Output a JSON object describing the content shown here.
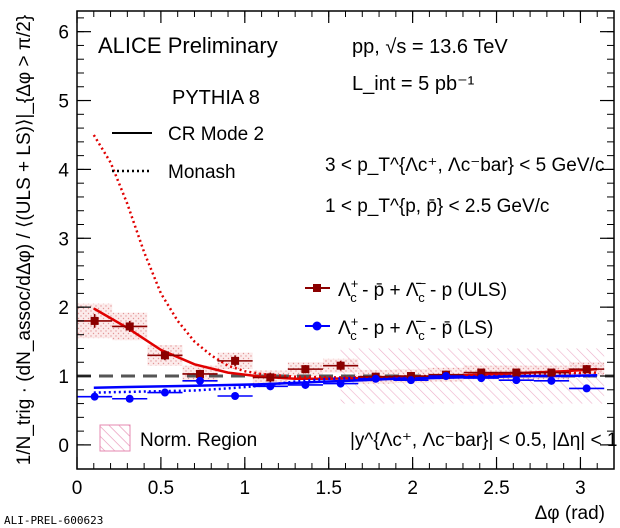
{
  "chart_data": {
    "type": "scatter",
    "title": "ALICE Preliminary",
    "collision": "pp,  √s = 13.6 TeV",
    "luminosity": "L_int = 5 pb⁻¹",
    "generator": "PYTHIA 8",
    "kinematics": [
      "3 < p_T^{Λc⁺, Λc⁻bar} < 5 GeV/c",
      "1 < p_T^{p, p̄} < 2.5 GeV/c"
    ],
    "acceptance": "|y^{Λc⁺, Λc⁻bar}| < 0.5, |Δη| < 1",
    "xlabel": "Δφ (rad)",
    "ylabel": "1/N_trig · (dN_assoc/dΔφ) / ⟨(ULS + LS)⟩|_{Δφ > π/2}",
    "xlim": [
      0,
      3.2
    ],
    "ylim": [
      -0.35,
      6.3
    ],
    "xticks": [
      0,
      0.5,
      1,
      1.5,
      2,
      2.5,
      3
    ],
    "yticks": [
      0,
      1,
      2,
      3,
      4,
      5,
      6
    ],
    "reference_line": 1.0,
    "watermark": "ALI-PREL-600623",
    "norm_region": {
      "label": "Norm. Region",
      "x_range": [
        1.5708,
        3.1416
      ],
      "y_range": [
        0.6,
        1.4
      ]
    },
    "series": [
      {
        "name": "ULS",
        "color": "#8b0000",
        "x": [
          0.105,
          0.314,
          0.524,
          0.733,
          0.942,
          1.152,
          1.361,
          1.571,
          1.78,
          1.99,
          2.199,
          2.409,
          2.618,
          2.827,
          3.037
        ],
        "y": [
          1.8,
          1.72,
          1.3,
          1.03,
          1.22,
          0.98,
          1.1,
          1.15,
          0.99,
          1.0,
          1.02,
          1.05,
          1.05,
          1.05,
          1.1
        ],
        "err": [
          0.1,
          0.08,
          0.07,
          0.06,
          0.08,
          0.07,
          0.06,
          0.07,
          0.06,
          0.05,
          0.05,
          0.05,
          0.05,
          0.05,
          0.06
        ],
        "syst": [
          0.25,
          0.2,
          0.15,
          0.12,
          0.12,
          0.1,
          0.1,
          0.1,
          0.1,
          0.1,
          0.1,
          0.1,
          0.1,
          0.1,
          0.1
        ]
      },
      {
        "name": "LS",
        "color": "#0000ff",
        "x": [
          0.105,
          0.314,
          0.524,
          0.733,
          0.942,
          1.152,
          1.361,
          1.571,
          1.78,
          1.99,
          2.199,
          2.409,
          2.618,
          2.827,
          3.037
        ],
        "y": [
          0.7,
          0.67,
          0.76,
          0.93,
          0.71,
          0.85,
          0.87,
          0.89,
          0.96,
          0.94,
          1.0,
          0.97,
          0.94,
          0.93,
          0.82
        ],
        "err": [
          0.05,
          0.05,
          0.05,
          0.05,
          0.05,
          0.05,
          0.05,
          0.04,
          0.04,
          0.04,
          0.04,
          0.04,
          0.04,
          0.04,
          0.05
        ]
      }
    ],
    "models": [
      {
        "name": "CR Mode 2",
        "style": "solid"
      },
      {
        "name": "Monash",
        "style": "dotted"
      }
    ],
    "curves": [
      {
        "series": "ULS",
        "model": "CR Mode 2",
        "color": "#e00000",
        "style": "solid",
        "x": [
          0.1,
          0.3,
          0.5,
          0.7,
          0.9,
          1.1,
          1.3,
          1.5,
          1.7,
          1.9,
          2.1,
          2.3,
          2.5,
          2.7,
          2.9,
          3.1
        ],
        "y": [
          1.98,
          1.7,
          1.38,
          1.17,
          1.05,
          0.99,
          0.96,
          0.96,
          0.97,
          0.98,
          0.99,
          1.01,
          1.03,
          1.05,
          1.07,
          1.1
        ]
      },
      {
        "series": "ULS",
        "model": "Monash",
        "color": "#e00000",
        "style": "dotted",
        "x": [
          0.1,
          0.2,
          0.3,
          0.4,
          0.5,
          0.6,
          0.7,
          0.8,
          0.9,
          1.0,
          1.1,
          1.3,
          1.5,
          1.7,
          1.9,
          2.1,
          2.3,
          2.5,
          2.7,
          2.9,
          3.1
        ],
        "y": [
          4.5,
          4.1,
          3.5,
          2.8,
          2.2,
          1.8,
          1.5,
          1.3,
          1.15,
          1.07,
          1.03,
          0.99,
          0.98,
          0.98,
          0.99,
          1.0,
          1.01,
          1.02,
          1.03,
          1.04,
          1.05
        ]
      },
      {
        "series": "LS",
        "model": "CR Mode 2",
        "color": "#0000ff",
        "style": "solid",
        "x": [
          0.1,
          0.3,
          0.5,
          0.7,
          0.9,
          1.1,
          1.3,
          1.5,
          1.7,
          1.9,
          2.1,
          2.3,
          2.5,
          2.7,
          2.9,
          3.1
        ],
        "y": [
          0.83,
          0.84,
          0.85,
          0.86,
          0.87,
          0.88,
          0.9,
          0.92,
          0.94,
          0.96,
          0.97,
          0.98,
          0.99,
          1.0,
          1.0,
          1.01
        ]
      },
      {
        "series": "LS",
        "model": "Monash",
        "color": "#0000ff",
        "style": "dotted",
        "x": [
          0.1,
          0.3,
          0.5,
          0.7,
          0.9,
          1.1,
          1.3,
          1.5,
          1.7,
          1.9,
          2.1,
          2.3,
          2.5,
          2.7,
          2.9,
          3.1
        ],
        "y": [
          0.76,
          0.77,
          0.78,
          0.79,
          0.82,
          0.86,
          0.92,
          0.96,
          0.97,
          0.98,
          0.98,
          0.99,
          1.0,
          1.0,
          1.0,
          1.0
        ]
      }
    ]
  }
}
